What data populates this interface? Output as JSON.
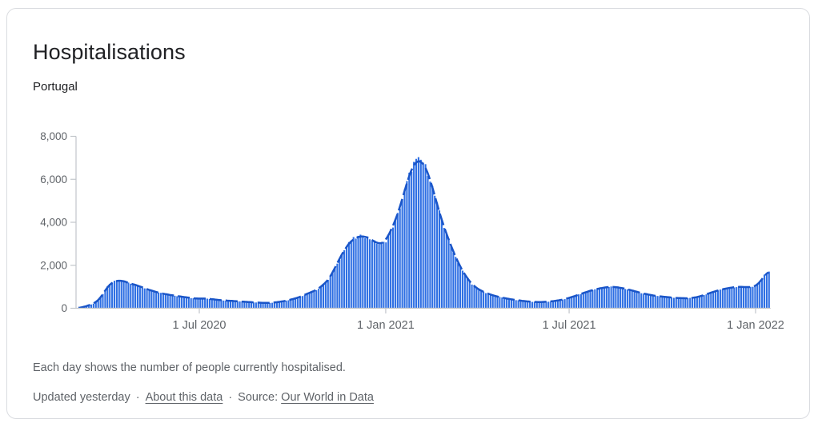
{
  "card": {
    "title": "Hospitalisations",
    "subtitle": "Portugal",
    "footnote": "Each day shows the number of people currently hospitalised.",
    "updated": "Updated yesterday",
    "separator": "·",
    "about_link": "About this data",
    "source_prefix": "Source:",
    "source_link": "Our World in Data"
  },
  "colors": {
    "bar": "#2e6fe3",
    "trend_line": "#1a55c8",
    "axis_line": "#c1c5ca",
    "tick_label": "#5f6368",
    "title_text": "#202124",
    "footer_text": "#5f6368",
    "card_border": "#dadce0",
    "background": "#ffffff"
  },
  "chart_data": {
    "type": "bar",
    "title": "Hospitalisations",
    "region": "Portugal",
    "unit": "people currently hospitalised",
    "x_type": "date-daily",
    "x_range": [
      "2020-03-02",
      "2022-01-15"
    ],
    "ylim": [
      0,
      8000
    ],
    "grid": false,
    "legend": "none",
    "overlay_line": "dashed trend line following daily bar tops",
    "y_ticks": [
      {
        "label": "0",
        "value": 0
      },
      {
        "label": "2,000",
        "value": 2000
      },
      {
        "label": "4,000",
        "value": 4000
      },
      {
        "label": "6,000",
        "value": 6000
      },
      {
        "label": "8,000",
        "value": 8000
      }
    ],
    "x_ticks": [
      {
        "label": "1 Jul 2020",
        "date": "2020-07-01"
      },
      {
        "label": "1 Jan 2021",
        "date": "2021-01-01"
      },
      {
        "label": "1 Jul 2021",
        "date": "2021-07-01"
      },
      {
        "label": "1 Jan 2022",
        "date": "2022-01-01"
      }
    ],
    "samples": [
      [
        "2020-03-02",
        8
      ],
      [
        "2020-03-06",
        30
      ],
      [
        "2020-03-10",
        70
      ],
      [
        "2020-03-14",
        140
      ],
      [
        "2020-03-18",
        200
      ],
      [
        "2020-03-22",
        300
      ],
      [
        "2020-03-26",
        500
      ],
      [
        "2020-03-29",
        750
      ],
      [
        "2020-04-01",
        980
      ],
      [
        "2020-04-05",
        1180
      ],
      [
        "2020-04-09",
        1270
      ],
      [
        "2020-04-14",
        1300
      ],
      [
        "2020-04-18",
        1260
      ],
      [
        "2020-04-24",
        1150
      ],
      [
        "2020-05-01",
        1060
      ],
      [
        "2020-05-08",
        930
      ],
      [
        "2020-05-16",
        800
      ],
      [
        "2020-05-24",
        700
      ],
      [
        "2020-06-03",
        610
      ],
      [
        "2020-06-13",
        540
      ],
      [
        "2020-06-23",
        480
      ],
      [
        "2020-07-01",
        435
      ],
      [
        "2020-07-06",
        465
      ],
      [
        "2020-07-12",
        430
      ],
      [
        "2020-07-20",
        385
      ],
      [
        "2020-07-30",
        350
      ],
      [
        "2020-08-10",
        320
      ],
      [
        "2020-08-20",
        285
      ],
      [
        "2020-08-30",
        255
      ],
      [
        "2020-09-08",
        250
      ],
      [
        "2020-09-16",
        280
      ],
      [
        "2020-09-24",
        345
      ],
      [
        "2020-10-02",
        430
      ],
      [
        "2020-10-08",
        520
      ],
      [
        "2020-10-14",
        645
      ],
      [
        "2020-10-20",
        760
      ],
      [
        "2020-10-26",
        880
      ],
      [
        "2020-11-01",
        1120
      ],
      [
        "2020-11-07",
        1400
      ],
      [
        "2020-11-10",
        1700
      ],
      [
        "2020-11-14",
        2110
      ],
      [
        "2020-11-18",
        2430
      ],
      [
        "2020-11-22",
        2790
      ],
      [
        "2020-11-26",
        3040
      ],
      [
        "2020-11-30",
        3230
      ],
      [
        "2020-12-05",
        3330
      ],
      [
        "2020-12-09",
        3360
      ],
      [
        "2020-12-13",
        3330
      ],
      [
        "2020-12-17",
        3220
      ],
      [
        "2020-12-21",
        3090
      ],
      [
        "2020-12-25",
        2990
      ],
      [
        "2020-12-29",
        3020
      ],
      [
        "2021-01-01",
        3110
      ],
      [
        "2021-01-05",
        3530
      ],
      [
        "2021-01-09",
        3900
      ],
      [
        "2021-01-13",
        4400
      ],
      [
        "2021-01-17",
        5020
      ],
      [
        "2021-01-21",
        5700
      ],
      [
        "2021-01-25",
        6320
      ],
      [
        "2021-01-29",
        6760
      ],
      [
        "2021-02-01",
        6870
      ],
      [
        "2021-02-04",
        6900
      ],
      [
        "2021-02-07",
        6780
      ],
      [
        "2021-02-10",
        6500
      ],
      [
        "2021-02-14",
        6000
      ],
      [
        "2021-02-18",
        5300
      ],
      [
        "2021-02-22",
        4600
      ],
      [
        "2021-02-26",
        4000
      ],
      [
        "2021-03-02",
        3450
      ],
      [
        "2021-03-06",
        2950
      ],
      [
        "2021-03-10",
        2500
      ],
      [
        "2021-03-14",
        2060
      ],
      [
        "2021-03-18",
        1720
      ],
      [
        "2021-03-22",
        1420
      ],
      [
        "2021-03-26",
        1180
      ],
      [
        "2021-03-30",
        990
      ],
      [
        "2021-04-04",
        840
      ],
      [
        "2021-04-10",
        710
      ],
      [
        "2021-04-16",
        610
      ],
      [
        "2021-04-24",
        510
      ],
      [
        "2021-05-03",
        430
      ],
      [
        "2021-05-13",
        360
      ],
      [
        "2021-05-23",
        305
      ],
      [
        "2021-06-02",
        285
      ],
      [
        "2021-06-12",
        310
      ],
      [
        "2021-06-22",
        375
      ],
      [
        "2021-07-01",
        480
      ],
      [
        "2021-07-08",
        590
      ],
      [
        "2021-07-16",
        725
      ],
      [
        "2021-07-24",
        845
      ],
      [
        "2021-08-01",
        935
      ],
      [
        "2021-08-08",
        990
      ],
      [
        "2021-08-14",
        1000
      ],
      [
        "2021-08-21",
        950
      ],
      [
        "2021-08-29",
        870
      ],
      [
        "2021-09-06",
        760
      ],
      [
        "2021-09-15",
        655
      ],
      [
        "2021-09-25",
        570
      ],
      [
        "2021-10-05",
        520
      ],
      [
        "2021-10-15",
        480
      ],
      [
        "2021-10-25",
        460
      ],
      [
        "2021-11-01",
        485
      ],
      [
        "2021-11-08",
        560
      ],
      [
        "2021-11-15",
        680
      ],
      [
        "2021-11-22",
        790
      ],
      [
        "2021-11-29",
        880
      ],
      [
        "2021-12-06",
        950
      ],
      [
        "2021-12-13",
        990
      ],
      [
        "2021-12-18",
        1000
      ],
      [
        "2021-12-23",
        975
      ],
      [
        "2021-12-28",
        990
      ],
      [
        "2022-01-01",
        1015
      ],
      [
        "2022-01-04",
        1120
      ],
      [
        "2022-01-07",
        1330
      ],
      [
        "2022-01-10",
        1550
      ],
      [
        "2022-01-13",
        1690
      ],
      [
        "2022-01-15",
        1745
      ]
    ]
  }
}
